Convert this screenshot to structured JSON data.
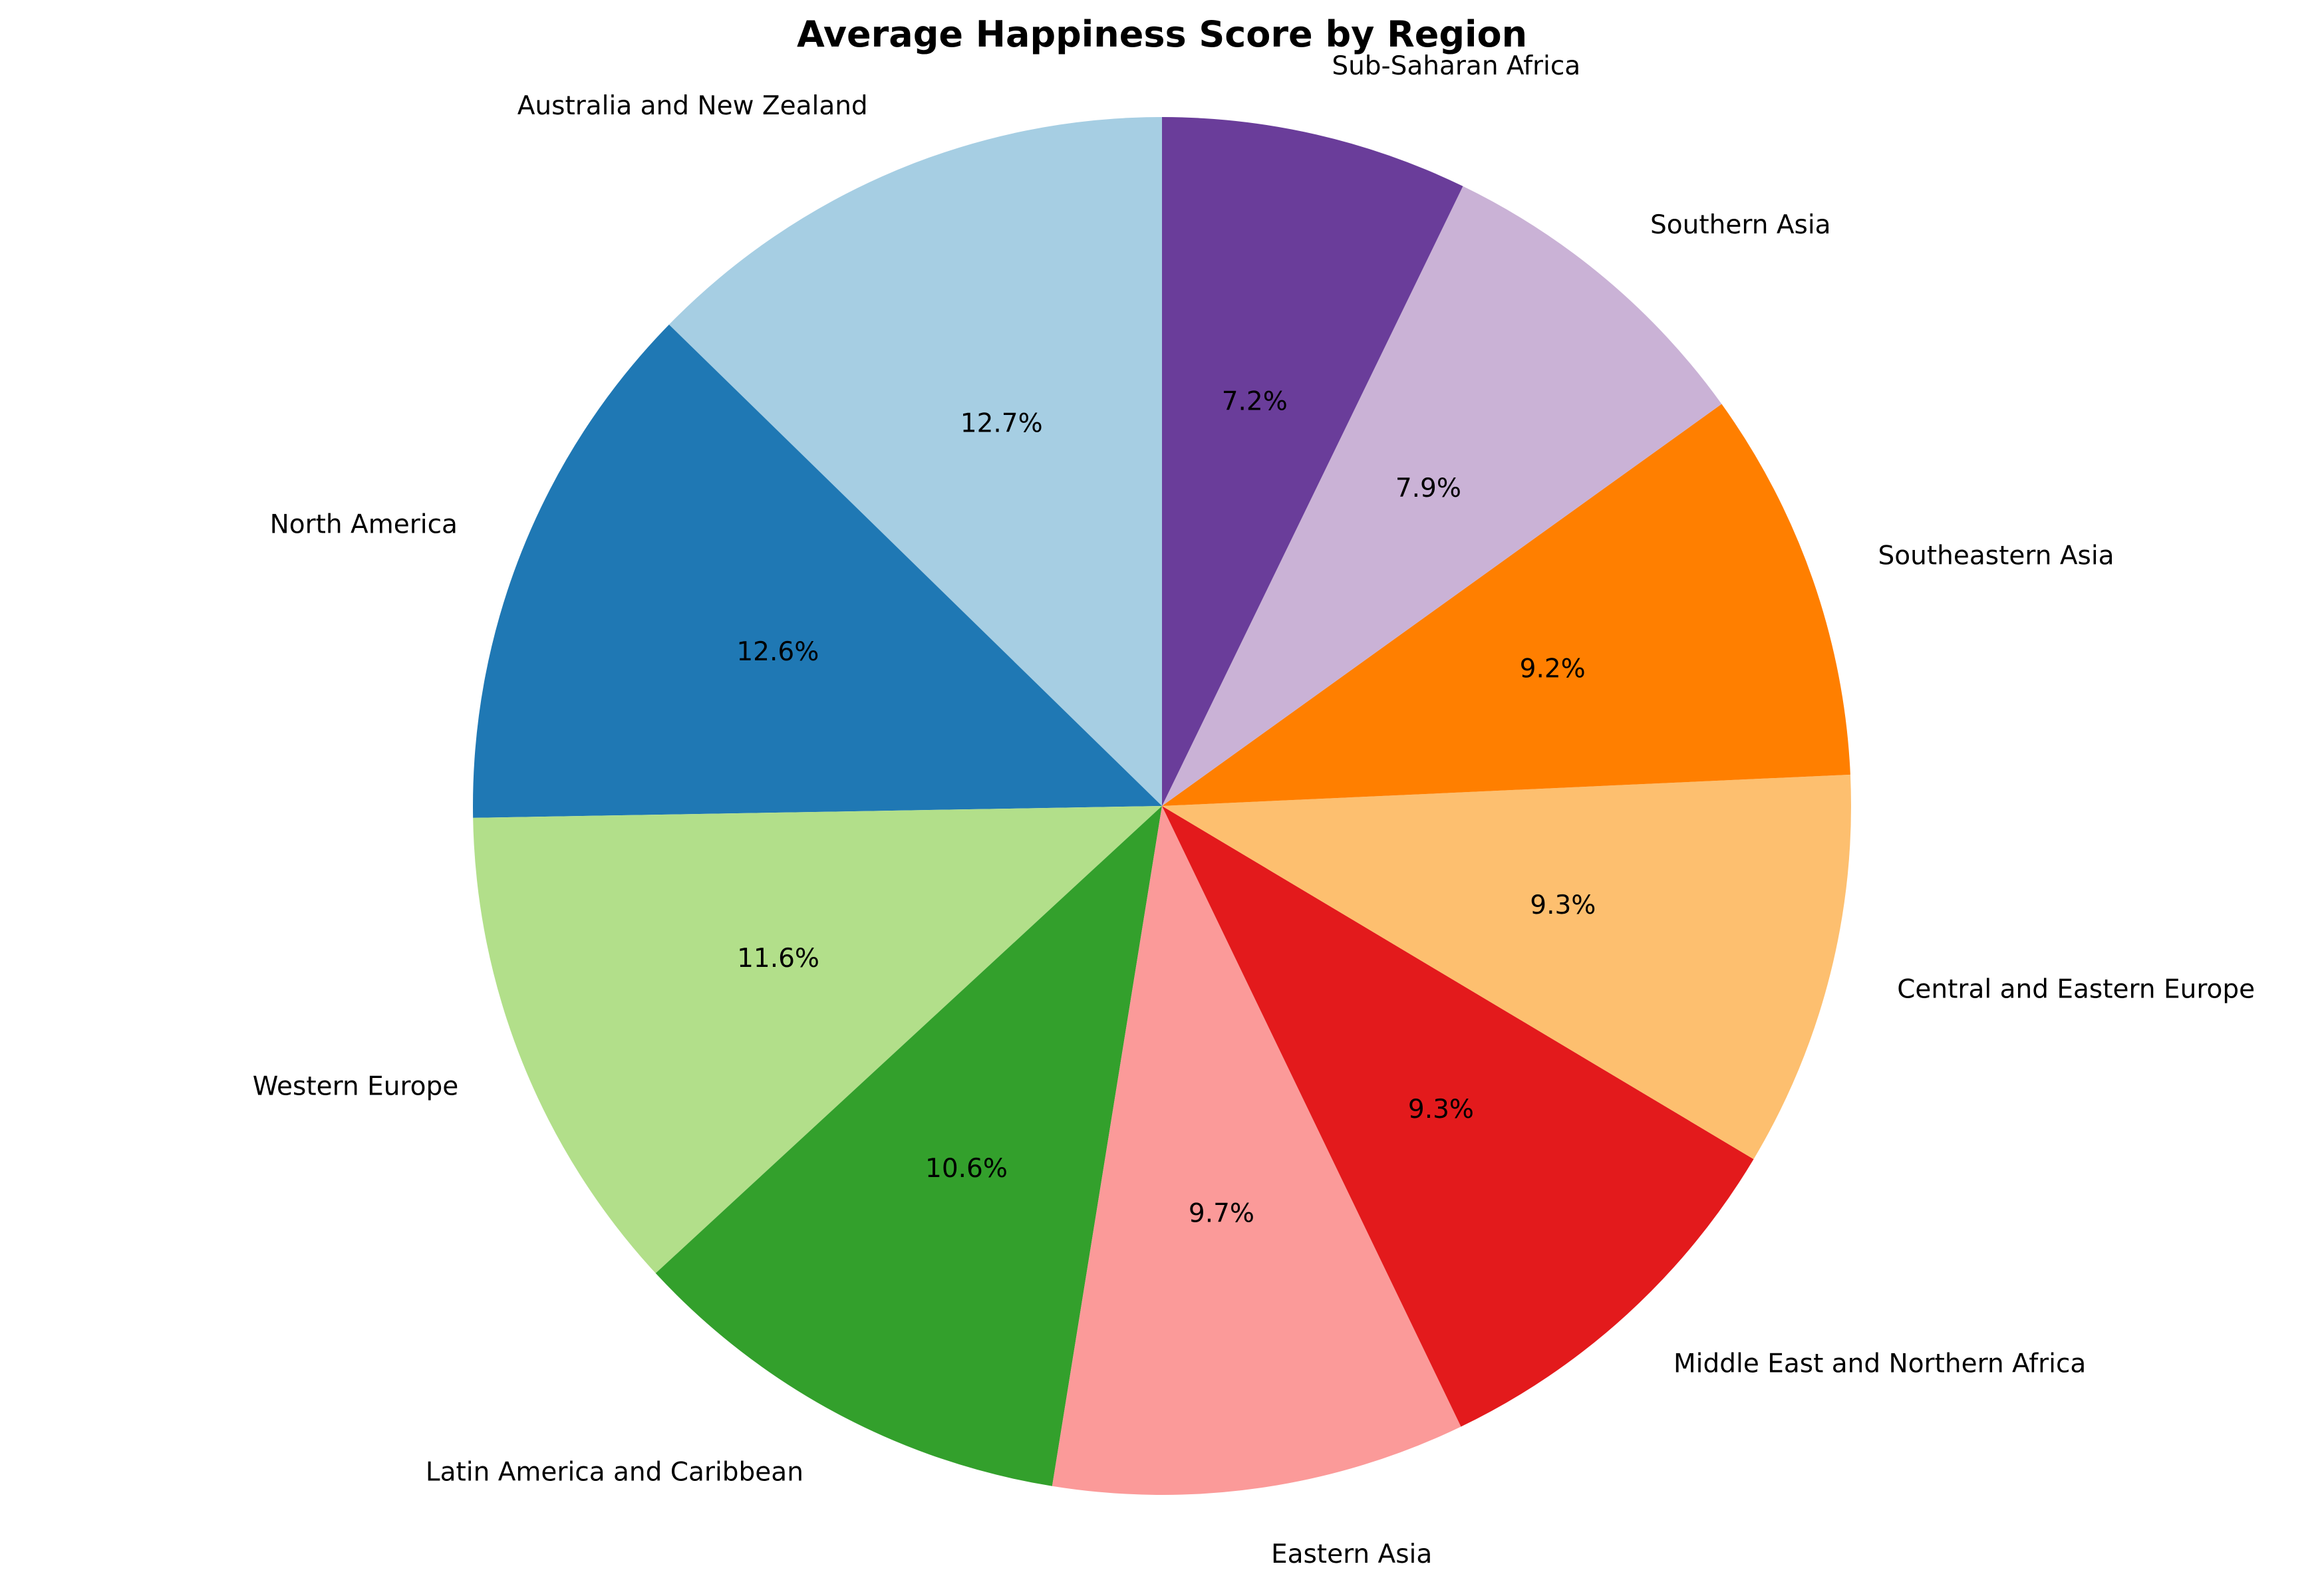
{
  "chart_data": {
    "type": "pie",
    "title": "Average Happiness Score by Region",
    "start_angle_deg": 90,
    "direction": "counterclockwise",
    "autopct_format": "{:.1f}%",
    "slices": [
      {
        "label": "Australia and New Zealand",
        "percent": 12.7,
        "color": "#a6cee3"
      },
      {
        "label": "North America",
        "percent": 12.6,
        "color": "#1f78b4"
      },
      {
        "label": "Western Europe",
        "percent": 11.6,
        "color": "#b2df8a"
      },
      {
        "label": "Latin America and Caribbean",
        "percent": 10.6,
        "color": "#33a02c"
      },
      {
        "label": "Eastern Asia",
        "percent": 9.7,
        "color": "#fb9a99"
      },
      {
        "label": "Middle East and Northern Africa",
        "percent": 9.3,
        "color": "#e31a1c"
      },
      {
        "label": "Central and Eastern Europe",
        "percent": 9.3,
        "color": "#fdbf6f"
      },
      {
        "label": "Southeastern Asia",
        "percent": 9.2,
        "color": "#ff7f00"
      },
      {
        "label": "Southern Asia",
        "percent": 7.9,
        "color": "#cab2d6"
      },
      {
        "label": "Sub-Saharan Africa",
        "percent": 7.2,
        "color": "#6a3d9a"
      }
    ]
  }
}
